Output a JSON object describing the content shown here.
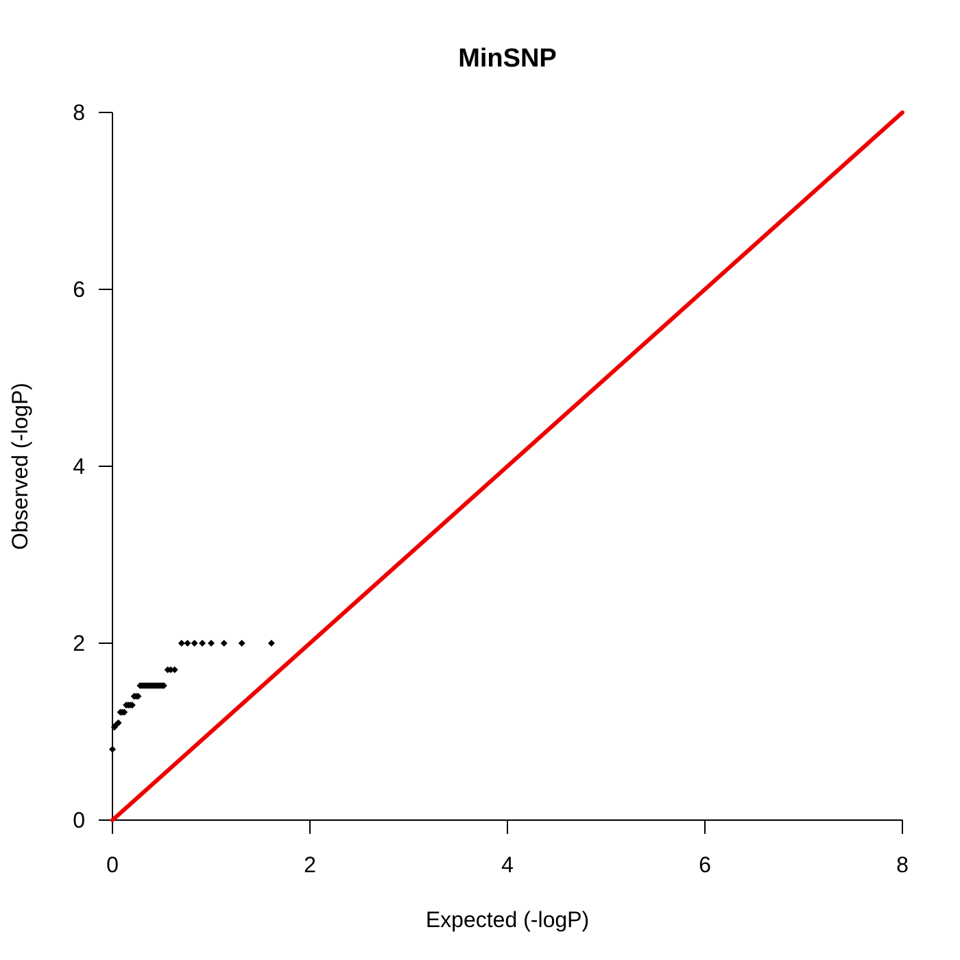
{
  "chart_data": {
    "type": "scatter",
    "title": "MinSNP",
    "xlabel": "Expected (-logP)",
    "ylabel": "Observed (-logP)",
    "xlim": [
      0,
      8
    ],
    "ylim": [
      0,
      8
    ],
    "xticks": [
      "0",
      "2",
      "4",
      "6",
      "8"
    ],
    "yticks": [
      "0",
      "2",
      "4",
      "6",
      "8"
    ],
    "grid": false,
    "points": {
      "x": [
        0.0,
        0.02,
        0.04,
        0.06,
        0.08,
        0.1,
        0.12,
        0.14,
        0.16,
        0.18,
        0.2,
        0.22,
        0.24,
        0.26,
        0.28,
        0.3,
        0.32,
        0.34,
        0.36,
        0.38,
        0.4,
        0.42,
        0.44,
        0.46,
        0.48,
        0.5,
        0.52,
        0.56,
        0.59,
        0.63,
        0.7,
        0.76,
        0.83,
        0.91,
        1.0,
        1.13,
        1.31,
        1.61
      ],
      "y": [
        0.8,
        1.05,
        1.08,
        1.1,
        1.22,
        1.22,
        1.22,
        1.3,
        1.3,
        1.3,
        1.3,
        1.4,
        1.4,
        1.4,
        1.52,
        1.52,
        1.52,
        1.52,
        1.52,
        1.52,
        1.52,
        1.52,
        1.52,
        1.52,
        1.52,
        1.52,
        1.52,
        1.7,
        1.7,
        1.7,
        2.0,
        2.0,
        2.0,
        2.0,
        2.0,
        2.0,
        2.0,
        2.0
      ],
      "color": "#000000",
      "marker": "diamond"
    },
    "reference_line": {
      "x": [
        0,
        8
      ],
      "y": [
        0,
        8
      ],
      "color": "#ee0000"
    }
  }
}
